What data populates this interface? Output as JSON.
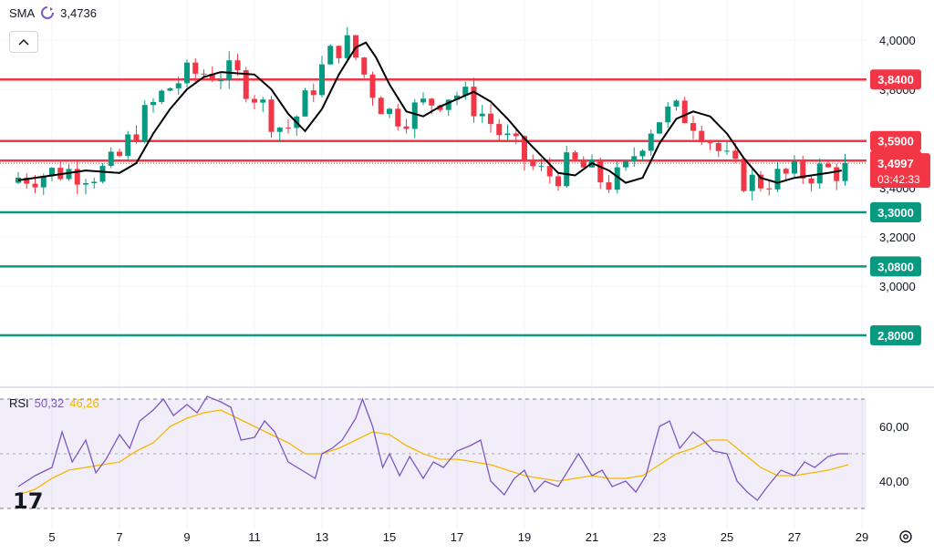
{
  "legend": {
    "indicator": "SMA",
    "value": "3,4736",
    "icon": "refresh-icon"
  },
  "rsi_legend": {
    "name": "RSI",
    "rsi_value": "50,32",
    "ma_value": "46,26"
  },
  "chart_data": [
    {
      "type": "candlestick",
      "y_axis_ticks": [
        "4,0000",
        "3,8000",
        "3,6000",
        "3,4000",
        "3,2000",
        "3,0000"
      ],
      "ylim": [
        2.75,
        4.15
      ],
      "x_tick_labels": [
        "5",
        "7",
        "9",
        "11",
        "13",
        "15",
        "17",
        "19",
        "21",
        "23",
        "25",
        "27",
        "29"
      ],
      "horizontal_levels": [
        {
          "label": "3,8400",
          "value": 3.84,
          "color": "#f23645"
        },
        {
          "label": "3,5900",
          "value": 3.59,
          "color": "#f23645"
        },
        {
          "label": "3,5100",
          "value": 3.51,
          "color": "#f23645"
        },
        {
          "label": "3,3000",
          "value": 3.3,
          "color": "#089981"
        },
        {
          "label": "3,0800",
          "value": 3.08,
          "color": "#089981"
        },
        {
          "label": "2,8000",
          "value": 2.8,
          "color": "#089981"
        }
      ],
      "price_label": {
        "price": "3,4997",
        "countdown": "03:42:33",
        "value": 3.4997,
        "color": "#f23645"
      },
      "up_color": "#089981",
      "down_color": "#f23645",
      "sma_color": "#000000",
      "sma": [
        [
          4,
          3.43
        ],
        [
          5,
          3.45
        ],
        [
          6,
          3.47
        ],
        [
          7,
          3.46
        ],
        [
          7.5,
          3.5
        ],
        [
          8,
          3.62
        ],
        [
          8.5,
          3.72
        ],
        [
          9,
          3.8
        ],
        [
          9.5,
          3.85
        ],
        [
          10,
          3.87
        ],
        [
          11,
          3.86
        ],
        [
          11.5,
          3.8
        ],
        [
          12,
          3.7
        ],
        [
          12.5,
          3.63
        ],
        [
          13,
          3.72
        ],
        [
          13.5,
          3.86
        ],
        [
          14,
          3.97
        ],
        [
          14.3,
          3.99
        ],
        [
          14.6,
          3.93
        ],
        [
          15,
          3.82
        ],
        [
          15.5,
          3.71
        ],
        [
          16,
          3.69
        ],
        [
          16.5,
          3.73
        ],
        [
          17.5,
          3.79
        ],
        [
          18,
          3.75
        ],
        [
          18.5,
          3.68
        ],
        [
          19,
          3.6
        ],
        [
          19.5,
          3.53
        ],
        [
          20,
          3.46
        ],
        [
          20.5,
          3.45
        ],
        [
          21,
          3.5
        ],
        [
          21.5,
          3.47
        ],
        [
          22,
          3.42
        ],
        [
          22.5,
          3.44
        ],
        [
          23,
          3.58
        ],
        [
          23.5,
          3.68
        ],
        [
          24,
          3.71
        ],
        [
          24.5,
          3.69
        ],
        [
          25,
          3.62
        ],
        [
          25.5,
          3.52
        ],
        [
          26,
          3.44
        ],
        [
          26.5,
          3.42
        ],
        [
          27,
          3.44
        ],
        [
          27.5,
          3.45
        ],
        [
          28,
          3.46
        ],
        [
          28.4,
          3.47
        ]
      ],
      "candles_note": "candles are drawn from generated OHLC series in the script"
    },
    {
      "type": "line",
      "series_colors": [
        "#7e57c2",
        "#f5b800"
      ],
      "y_axis_ticks": [
        "60,00",
        "40,00"
      ],
      "ylim": [
        25,
        75
      ],
      "band": [
        30,
        70
      ],
      "midline": 50,
      "rsi": [
        [
          4,
          38
        ],
        [
          4.5,
          42
        ],
        [
          5,
          45
        ],
        [
          5.3,
          58
        ],
        [
          5.6,
          47
        ],
        [
          6,
          55
        ],
        [
          6.3,
          43
        ],
        [
          6.6,
          48
        ],
        [
          7,
          57
        ],
        [
          7.3,
          52
        ],
        [
          7.6,
          62
        ],
        [
          8,
          66
        ],
        [
          8.3,
          70
        ],
        [
          8.6,
          64
        ],
        [
          9,
          68
        ],
        [
          9.3,
          65
        ],
        [
          9.6,
          71
        ],
        [
          10,
          69
        ],
        [
          10.3,
          67
        ],
        [
          10.6,
          55
        ],
        [
          11,
          56
        ],
        [
          11.3,
          62
        ],
        [
          11.6,
          58
        ],
        [
          12,
          47
        ],
        [
          12.4,
          44
        ],
        [
          12.8,
          41
        ],
        [
          13,
          50
        ],
        [
          13.3,
          52
        ],
        [
          13.6,
          55
        ],
        [
          14,
          63
        ],
        [
          14.2,
          70
        ],
        [
          14.5,
          60
        ],
        [
          14.8,
          45
        ],
        [
          15,
          50
        ],
        [
          15.3,
          42
        ],
        [
          15.6,
          49
        ],
        [
          16,
          41
        ],
        [
          16.3,
          47
        ],
        [
          16.6,
          45
        ],
        [
          17,
          51
        ],
        [
          17.4,
          53
        ],
        [
          17.7,
          55
        ],
        [
          18,
          40
        ],
        [
          18.4,
          35
        ],
        [
          18.7,
          41
        ],
        [
          19,
          44
        ],
        [
          19.3,
          36
        ],
        [
          19.6,
          40
        ],
        [
          20,
          38
        ],
        [
          20.3,
          44
        ],
        [
          20.6,
          50
        ],
        [
          21,
          42
        ],
        [
          21.3,
          44
        ],
        [
          21.6,
          38
        ],
        [
          22,
          40
        ],
        [
          22.3,
          36
        ],
        [
          22.6,
          42
        ],
        [
          23,
          60
        ],
        [
          23.3,
          62
        ],
        [
          23.6,
          52
        ],
        [
          24,
          58
        ],
        [
          24.3,
          55
        ],
        [
          24.6,
          51
        ],
        [
          25,
          50
        ],
        [
          25.3,
          40
        ],
        [
          25.6,
          36
        ],
        [
          25.9,
          33
        ],
        [
          26.2,
          38
        ],
        [
          26.6,
          44
        ],
        [
          27,
          42
        ],
        [
          27.3,
          47
        ],
        [
          27.6,
          45
        ],
        [
          28,
          49
        ],
        [
          28.3,
          50
        ],
        [
          28.6,
          50
        ]
      ],
      "rsi_ma": [
        [
          4,
          35
        ],
        [
          4.5,
          37
        ],
        [
          5,
          41
        ],
        [
          5.5,
          44
        ],
        [
          6,
          45
        ],
        [
          7,
          47
        ],
        [
          7.5,
          51
        ],
        [
          8,
          54
        ],
        [
          8.5,
          60
        ],
        [
          9,
          63
        ],
        [
          9.5,
          65
        ],
        [
          10,
          66
        ],
        [
          10.5,
          63
        ],
        [
          11,
          60
        ],
        [
          11.5,
          57
        ],
        [
          12,
          54
        ],
        [
          12.5,
          50
        ],
        [
          13,
          50
        ],
        [
          13.5,
          52
        ],
        [
          14,
          55
        ],
        [
          14.5,
          58
        ],
        [
          15,
          57
        ],
        [
          15.5,
          53
        ],
        [
          16,
          50
        ],
        [
          16.5,
          48
        ],
        [
          17,
          48
        ],
        [
          17.5,
          47
        ],
        [
          18,
          46
        ],
        [
          18.5,
          44
        ],
        [
          19,
          42
        ],
        [
          19.5,
          41
        ],
        [
          20,
          40
        ],
        [
          20.5,
          41
        ],
        [
          21,
          42
        ],
        [
          21.5,
          41
        ],
        [
          22,
          41
        ],
        [
          22.5,
          42
        ],
        [
          23,
          46
        ],
        [
          23.5,
          50
        ],
        [
          24,
          52
        ],
        [
          24.5,
          55
        ],
        [
          25,
          55
        ],
        [
          25.5,
          50
        ],
        [
          26,
          45
        ],
        [
          26.5,
          42
        ],
        [
          27,
          42
        ],
        [
          27.5,
          43
        ],
        [
          28,
          44
        ],
        [
          28.6,
          46
        ]
      ]
    }
  ]
}
